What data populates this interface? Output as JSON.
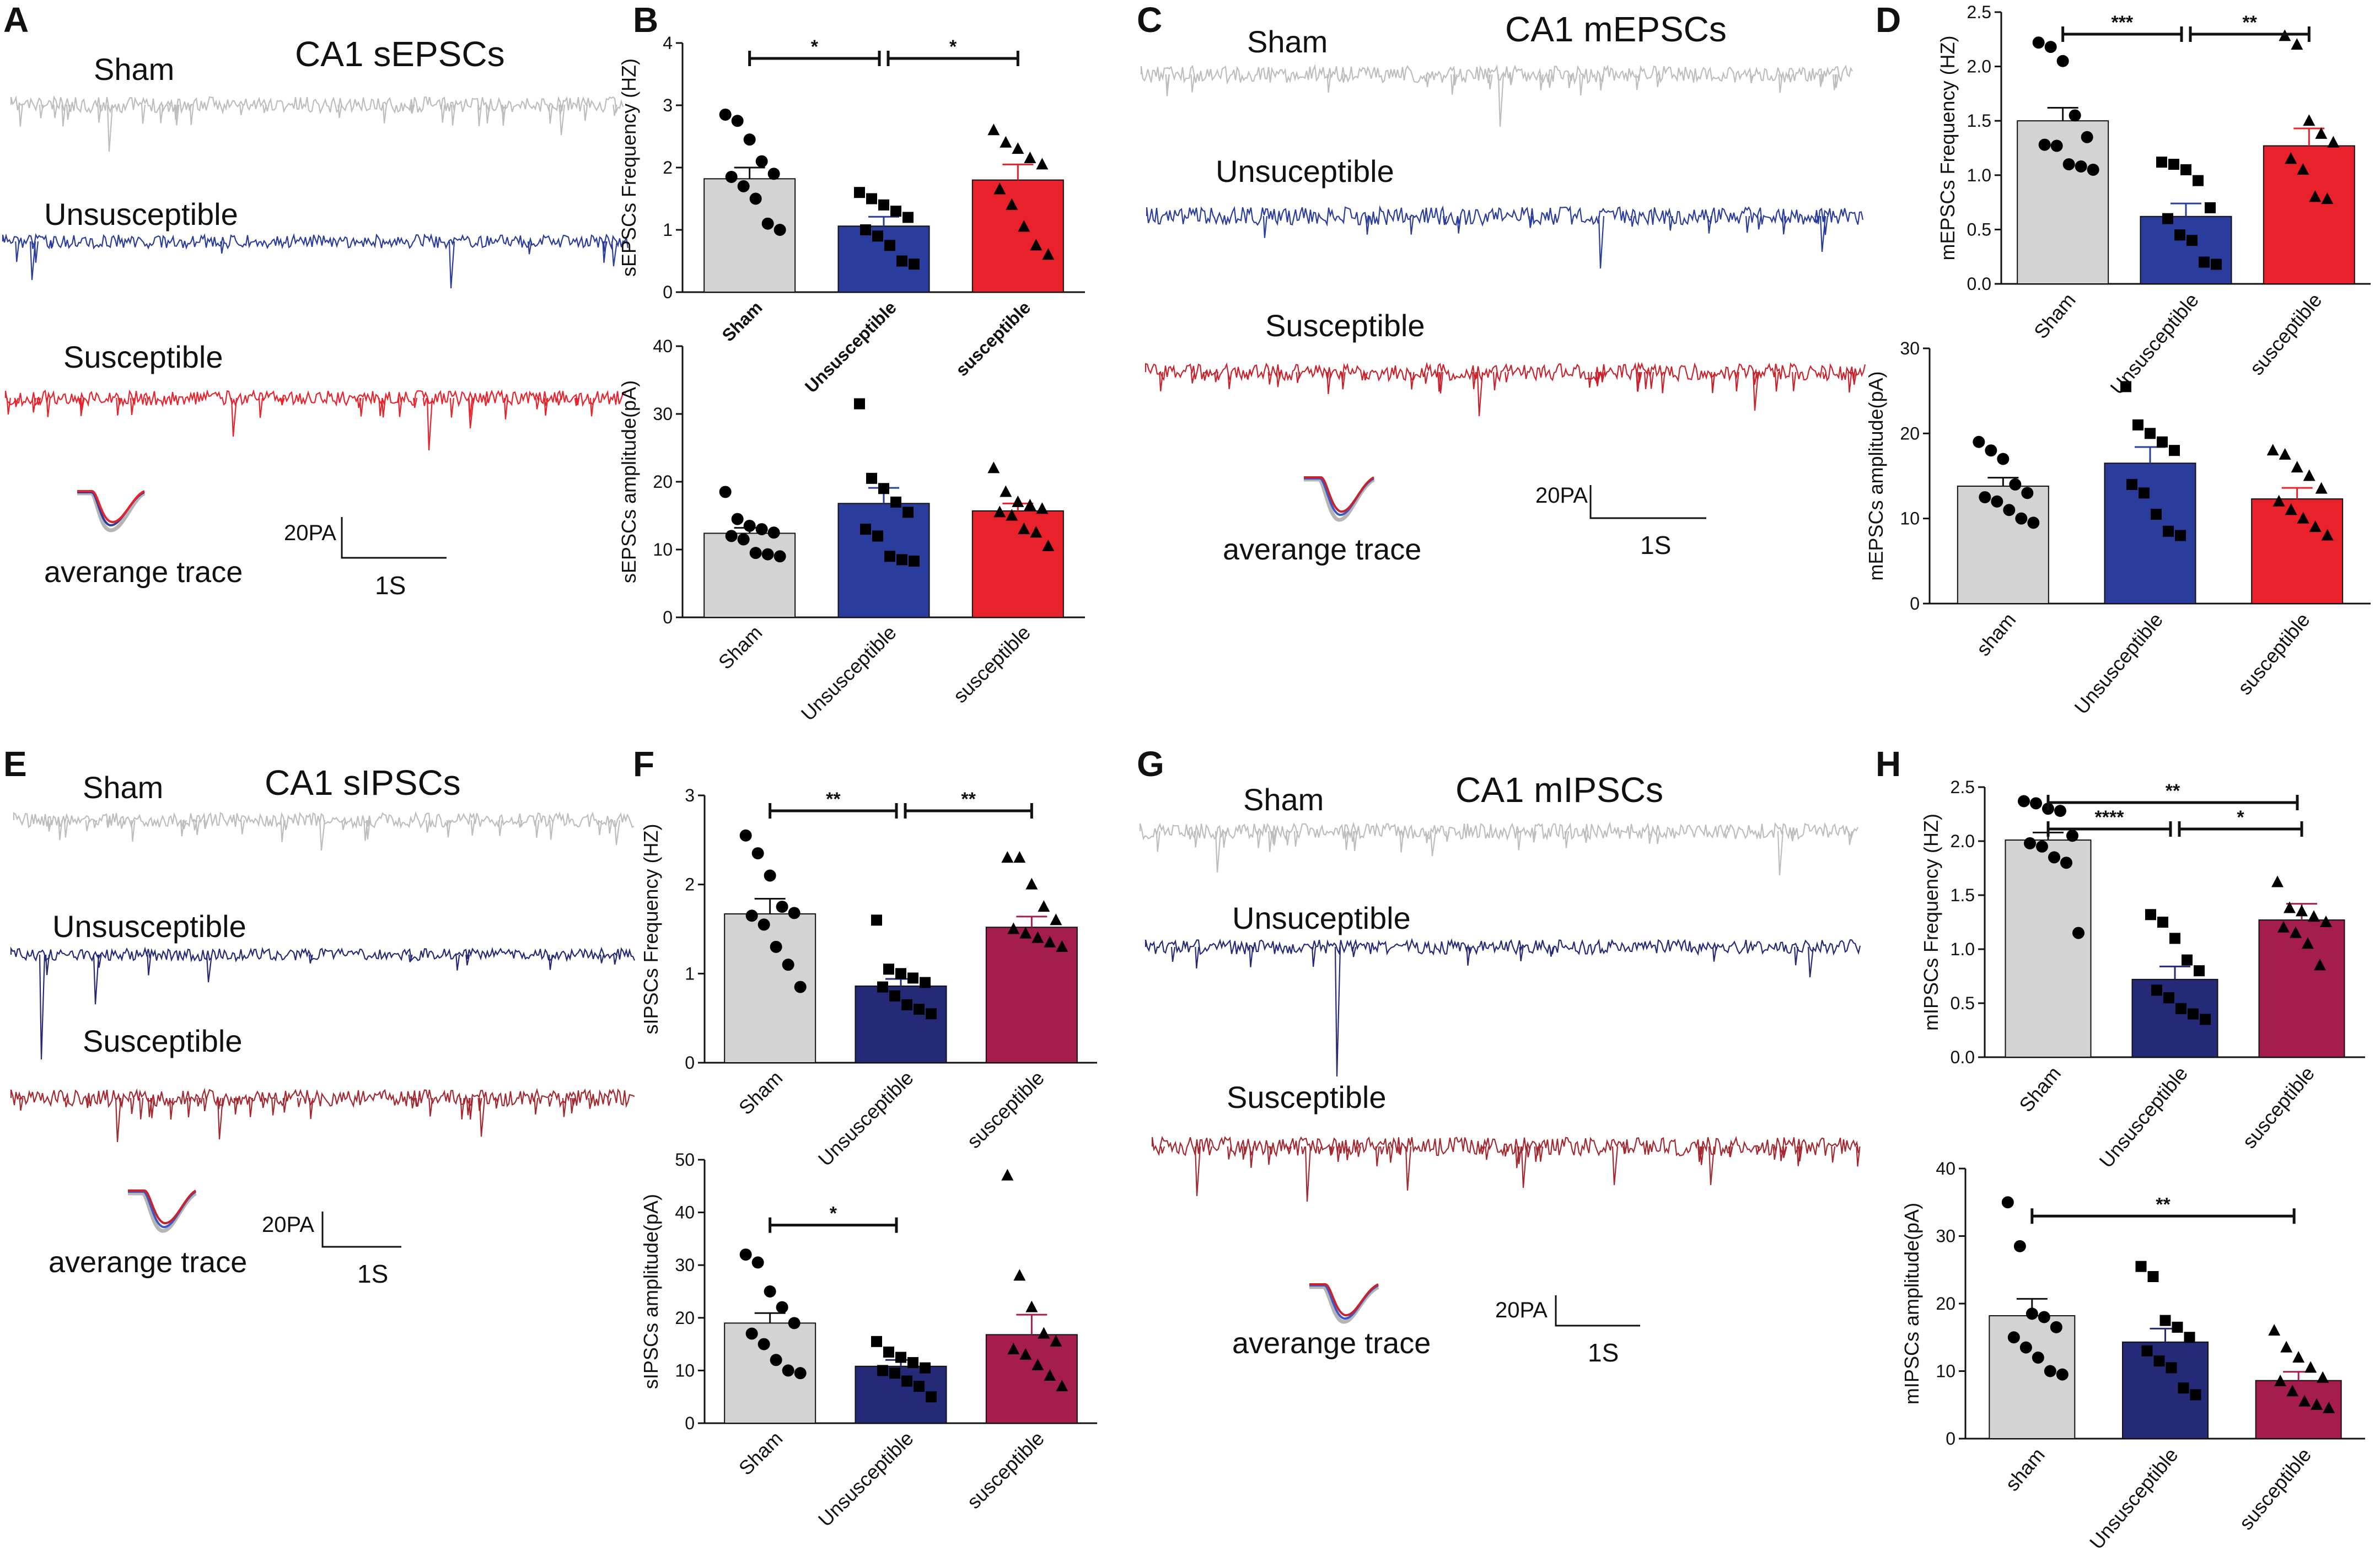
{
  "panels": {
    "A": {
      "letter": "A",
      "title": "CA1 sEPSCs",
      "traces": [
        "Sham",
        "Unsusceptible",
        "Susceptible"
      ],
      "avg": "averange trace",
      "scale_amp": "20PA",
      "scale_time": "1S"
    },
    "C": {
      "letter": "C",
      "title": "CA1 mEPSCs",
      "traces": [
        "Sham",
        "Unsuceptible",
        "Susceptible"
      ],
      "avg": "averange trace",
      "scale_amp": "20PA",
      "scale_time": "1S"
    },
    "E": {
      "letter": "E",
      "title": "CA1 sIPSCs",
      "traces": [
        "Sham",
        "Unsusceptible",
        "Susceptible"
      ],
      "avg": "averange trace",
      "scale_amp": "20PA",
      "scale_time": "1S"
    },
    "G": {
      "letter": "G",
      "title": "CA1 mIPSCs",
      "traces": [
        "Sham",
        "Unsuceptible",
        "Susceptible"
      ],
      "avg": "averange trace",
      "scale_amp": "20PA",
      "scale_time": "1S"
    }
  },
  "colors": {
    "sham": "#d3d3d3",
    "sham_trace": "#bdbdbd",
    "epsc_unsus": "#2a3d9c",
    "epsc_sus": "#e8212b",
    "ipsc_unsus": "#242a78",
    "ipsc_sus": "#a51d4f",
    "sus_trace_c": "#c8232c",
    "ipsc_sus_trace": "#a3282f"
  },
  "chart_data": [
    {
      "id": "B-top",
      "letter": "B",
      "type": "bar",
      "title": "",
      "ylabel": "sEPSCs Frequency (HZ)",
      "ylim": [
        0,
        4
      ],
      "ticks": [
        0,
        1,
        2,
        3,
        4
      ],
      "categories": [
        "Sham",
        "Unsusceptible",
        "susceptible"
      ],
      "values": [
        1.82,
        1.06,
        1.8
      ],
      "sem": [
        0.18,
        0.15,
        0.25
      ],
      "points": [
        [
          2.85,
          2.75,
          2.45,
          2.1,
          1.9,
          1.85,
          1.7,
          1.5,
          1.1,
          1.0
        ],
        [
          1.6,
          1.5,
          1.4,
          1.3,
          1.2,
          1.0,
          0.9,
          0.75,
          0.5,
          0.45
        ],
        [
          2.6,
          2.4,
          2.3,
          2.15,
          2.05,
          1.65,
          1.4,
          1.05,
          0.75,
          0.6
        ]
      ],
      "significance": [
        {
          "from": 0,
          "to": 1,
          "label": "*"
        },
        {
          "from": 1,
          "to": 2,
          "label": "*"
        }
      ]
    },
    {
      "id": "B-bottom",
      "letter": "",
      "type": "bar",
      "title": "",
      "ylabel": "sEPSCs amplitude(pA)",
      "ylim": [
        0,
        40
      ],
      "ticks": [
        0,
        10,
        20,
        30,
        40
      ],
      "categories": [
        "Sham",
        "Unsusceptible",
        "susceptible"
      ],
      "values": [
        12.4,
        16.8,
        15.7
      ],
      "sem": [
        0.8,
        2.3,
        1.1
      ],
      "points": [
        [
          18.5,
          14.5,
          13.5,
          13.0,
          12.5,
          12.0,
          11.5,
          9.5,
          9.3,
          9.0
        ],
        [
          31.5,
          20.5,
          19.0,
          17.0,
          15.5,
          13.0,
          12.0,
          9.0,
          8.5,
          8.3
        ],
        [
          22.0,
          18.5,
          17.0,
          16.5,
          16.0,
          15.5,
          15.0,
          13.0,
          12.5,
          10.5
        ]
      ],
      "significance": []
    },
    {
      "id": "D-top",
      "letter": "D",
      "type": "bar",
      "title": "",
      "ylabel": "mEPSCs Frequency (HZ)",
      "ylim": [
        0,
        2.5
      ],
      "ticks": [
        0.0,
        0.5,
        1.0,
        1.5,
        2.0,
        2.5
      ],
      "categories": [
        "Sham",
        "Unsusceptible",
        "susceptible"
      ],
      "values": [
        1.5,
        0.62,
        1.27
      ],
      "sem": [
        0.12,
        0.12,
        0.16
      ],
      "points": [
        [
          2.22,
          2.18,
          2.05,
          1.55,
          1.35,
          1.28,
          1.27,
          1.1,
          1.08,
          1.05
        ],
        [
          1.12,
          1.1,
          1.05,
          0.95,
          0.7,
          0.6,
          0.45,
          0.4,
          0.2,
          0.18
        ],
        [
          2.28,
          2.2,
          1.5,
          1.38,
          1.3,
          1.15,
          1.05,
          0.8,
          0.78
        ]
      ],
      "significance": [
        {
          "from": 0,
          "to": 1,
          "label": "***"
        },
        {
          "from": 1,
          "to": 2,
          "label": "**"
        }
      ]
    },
    {
      "id": "D-bottom",
      "letter": "",
      "type": "bar",
      "title": "",
      "ylabel": "mEPSCs amplitude(pA)",
      "ylim": [
        0,
        30
      ],
      "ticks": [
        0,
        10,
        20,
        30
      ],
      "categories": [
        "sham",
        "Unsusceptible",
        "susceptible"
      ],
      "values": [
        13.8,
        16.5,
        12.3
      ],
      "sem": [
        1.0,
        1.9,
        1.3
      ],
      "points": [
        [
          19.0,
          18.0,
          17.0,
          14.0,
          13.0,
          12.5,
          12.0,
          11.0,
          10.0,
          9.5
        ],
        [
          25.5,
          21.0,
          20.0,
          19.0,
          18.0,
          14.0,
          13.0,
          10.5,
          8.5,
          8.0
        ],
        [
          18.0,
          17.5,
          16.0,
          15.0,
          13.5,
          12.0,
          11.0,
          10.0,
          9.0,
          8.0
        ]
      ],
      "significance": []
    },
    {
      "id": "F-top",
      "letter": "F",
      "type": "bar",
      "title": "",
      "ylabel": "sIPSCs Frequency (HZ)",
      "ylim": [
        0,
        3
      ],
      "ticks": [
        0,
        1,
        2,
        3
      ],
      "categories": [
        "Sham",
        "Unsusceptible",
        "susceptible"
      ],
      "values": [
        1.67,
        0.86,
        1.52
      ],
      "sem": [
        0.17,
        0.08,
        0.12
      ],
      "points": [
        [
          2.55,
          2.35,
          2.1,
          1.75,
          1.68,
          1.65,
          1.55,
          1.3,
          1.1,
          0.85
        ],
        [
          1.6,
          1.05,
          1.0,
          0.95,
          0.9,
          0.85,
          0.75,
          0.65,
          0.6,
          0.55
        ],
        [
          2.3,
          2.3,
          2.0,
          1.75,
          1.6,
          1.5,
          1.45,
          1.4,
          1.35,
          1.3
        ]
      ],
      "significance": [
        {
          "from": 0,
          "to": 1,
          "label": "**"
        },
        {
          "from": 1,
          "to": 2,
          "label": "**"
        }
      ]
    },
    {
      "id": "F-bottom",
      "letter": "",
      "type": "bar",
      "title": "",
      "ylabel": "sIPSCs amplitude(pA)",
      "ylim": [
        0,
        50
      ],
      "ticks": [
        0,
        10,
        20,
        30,
        40,
        50
      ],
      "categories": [
        "Sham",
        "Unsusceptible",
        "susceptible"
      ],
      "values": [
        19.0,
        10.8,
        16.8
      ],
      "sem": [
        1.9,
        1.2,
        3.8
      ],
      "points": [
        [
          32.0,
          30.5,
          25.0,
          22.0,
          19.0,
          17.0,
          15.0,
          12.0,
          10.0,
          9.5
        ],
        [
          15.5,
          13.5,
          12.5,
          11.5,
          10.5,
          10.0,
          9.5,
          8.0,
          7.0,
          5.0
        ],
        [
          47.0,
          28.0,
          22.0,
          17.0,
          15.5,
          14.0,
          13.0,
          11.0,
          9.0,
          7.0
        ]
      ],
      "significance": [
        {
          "from": 0,
          "to": 1,
          "label": "*"
        }
      ]
    },
    {
      "id": "H-top",
      "letter": "H",
      "type": "bar",
      "title": "",
      "ylabel": "mIPSCs Frequency (HZ)",
      "ylim": [
        0,
        2.5
      ],
      "ticks": [
        0.0,
        0.5,
        1.0,
        1.5,
        2.0,
        2.5
      ],
      "categories": [
        "Sham",
        "Unsusceptible",
        "susceptible"
      ],
      "values": [
        2.01,
        0.72,
        1.27
      ],
      "sem": [
        0.07,
        0.12,
        0.15
      ],
      "points": [
        [
          2.37,
          2.35,
          2.3,
          2.28,
          2.05,
          1.98,
          1.95,
          1.85,
          1.8,
          1.15
        ],
        [
          1.32,
          1.25,
          1.1,
          0.9,
          0.8,
          0.62,
          0.55,
          0.45,
          0.4,
          0.35
        ],
        [
          1.62,
          1.38,
          1.35,
          1.3,
          1.25,
          1.2,
          1.15,
          1.05,
          0.85
        ]
      ],
      "significance": [
        {
          "from": 0,
          "to": 2,
          "label": "**"
        },
        {
          "from": 0,
          "to": 1,
          "label": "****"
        },
        {
          "from": 1,
          "to": 2,
          "label": "*"
        }
      ]
    },
    {
      "id": "H-bottom",
      "letter": "",
      "type": "bar",
      "title": "",
      "ylabel": "mIPSCs amplitude(pA)",
      "ylim": [
        0,
        40
      ],
      "ticks": [
        0,
        10,
        20,
        30,
        40
      ],
      "categories": [
        "sham",
        "Unsusceptible",
        "susceptible"
      ],
      "values": [
        18.2,
        14.3,
        8.6
      ],
      "sem": [
        2.5,
        2.0,
        1.3
      ],
      "points": [
        [
          35.0,
          28.5,
          18.5,
          18.0,
          16.5,
          15.0,
          13.5,
          12.0,
          10.0,
          9.5
        ],
        [
          25.5,
          24.0,
          17.5,
          16.5,
          15.0,
          13.0,
          11.5,
          10.5,
          7.5,
          6.5
        ],
        [
          16.0,
          13.5,
          12.0,
          10.5,
          9.0,
          8.5,
          7.0,
          5.5,
          5.0,
          4.5
        ]
      ],
      "significance": [
        {
          "from": 0,
          "to": 2,
          "label": "**"
        }
      ]
    }
  ]
}
